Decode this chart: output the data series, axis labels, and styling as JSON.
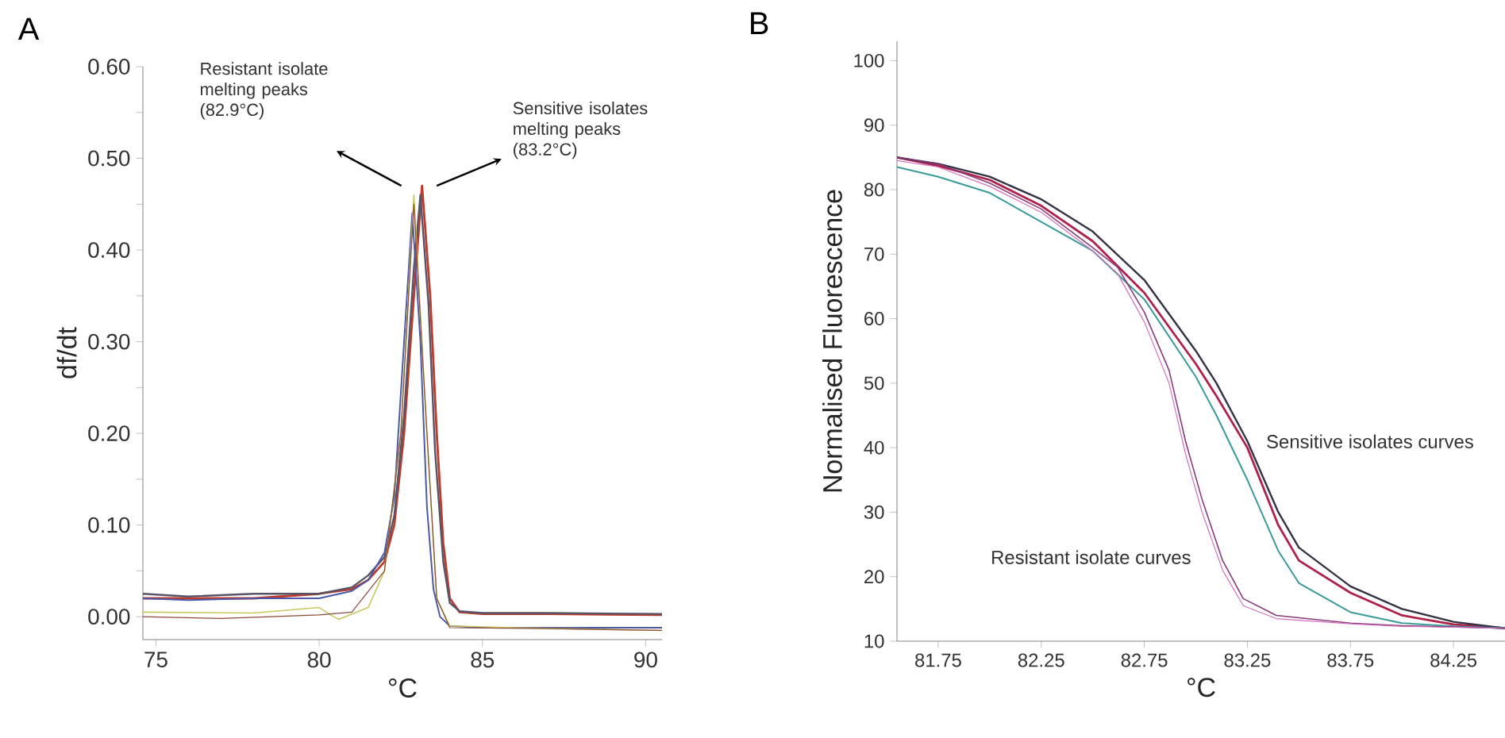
{
  "chart_data": [
    {
      "type": "line",
      "title": "A",
      "xlabel": "°C",
      "ylabel": "df/dt",
      "xlim": [
        74.6,
        90.5
      ],
      "ylim": [
        -0.025,
        0.6
      ],
      "xticks": [
        75,
        80,
        85,
        90
      ],
      "yticks": [
        {
          "value": 0,
          "label": "0.00"
        },
        {
          "value": 0.05,
          "label": null
        },
        {
          "value": 0.1,
          "label": "0.10"
        },
        {
          "value": 0.15,
          "label": null
        },
        {
          "value": 0.2,
          "label": "0.20"
        },
        {
          "value": 0.25,
          "label": null
        },
        {
          "value": 0.3,
          "label": "0.30"
        },
        {
          "value": 0.35,
          "label": null
        },
        {
          "value": 0.4,
          "label": "0.40"
        },
        {
          "value": 0.45,
          "label": null
        },
        {
          "value": 0.5,
          "label": "0.50"
        },
        {
          "value": 0.55,
          "label": null
        },
        {
          "value": 0.6,
          "label": "0.60"
        }
      ],
      "annotations": [
        "Resistant isolate melting peaks (82.9°C)",
        "Sensitive isolates melting peaks (83.2°C)"
      ],
      "series": [
        {
          "color": "#c0392b",
          "x": [
            74.6,
            76,
            78,
            80,
            81,
            81.5,
            82,
            82.3,
            82.6,
            82.9,
            83.15,
            83.4,
            83.6,
            83.8,
            84,
            84.3,
            85,
            87,
            90.5
          ],
          "values": [
            0.02,
            0.02,
            0.02,
            0.025,
            0.03,
            0.04,
            0.06,
            0.1,
            0.2,
            0.35,
            0.47,
            0.35,
            0.2,
            0.08,
            0.02,
            0.005,
            0.003,
            0.003,
            0.002
          ]
        },
        {
          "color": "#555566",
          "x": [
            74.6,
            76,
            78,
            80,
            81,
            81.5,
            82,
            82.3,
            82.6,
            82.9,
            83.1,
            83.35,
            83.55,
            83.8,
            84,
            84.3,
            85,
            87,
            90.5
          ],
          "values": [
            0.025,
            0.022,
            0.025,
            0.025,
            0.032,
            0.045,
            0.065,
            0.11,
            0.22,
            0.38,
            0.46,
            0.34,
            0.18,
            0.06,
            0.015,
            0.006,
            0.004,
            0.004,
            0.003
          ]
        },
        {
          "color": "#4a5aa8",
          "x": [
            74.6,
            76,
            78,
            80,
            81,
            81.5,
            82,
            82.3,
            82.6,
            82.85,
            83.1,
            83.3,
            83.5,
            83.7,
            84,
            85,
            90.5
          ],
          "values": [
            0.02,
            0.018,
            0.02,
            0.02,
            0.028,
            0.04,
            0.07,
            0.13,
            0.3,
            0.44,
            0.3,
            0.12,
            0.03,
            0.0,
            -0.01,
            -0.012,
            -0.012
          ]
        },
        {
          "color": "#c8c860",
          "x": [
            74.6,
            78,
            80,
            80.3,
            80.6,
            81.5,
            82,
            82.5,
            82.9,
            83.3,
            83.6,
            84,
            86,
            90.5
          ],
          "values": [
            0.005,
            0.004,
            0.01,
            0.003,
            -0.003,
            0.01,
            0.05,
            0.2,
            0.46,
            0.2,
            0.02,
            -0.01,
            -0.012,
            -0.015
          ]
        },
        {
          "color": "#8b4a3a",
          "x": [
            74.6,
            77,
            80,
            81,
            82,
            82.5,
            82.9,
            83.3,
            83.6,
            84,
            87,
            90.5
          ],
          "values": [
            0.0,
            -0.002,
            0.002,
            0.005,
            0.05,
            0.2,
            0.45,
            0.2,
            0.02,
            -0.012,
            -0.013,
            -0.015
          ]
        }
      ]
    },
    {
      "type": "line",
      "title": "B",
      "xlabel": "°C",
      "ylabel": "Normalised Fluorescence",
      "xlim": [
        81.55,
        84.5
      ],
      "ylim": [
        10,
        103
      ],
      "xticks": [
        81.75,
        82.25,
        82.75,
        83.25,
        83.75,
        84.25
      ],
      "yticks": [
        10,
        20,
        30,
        40,
        50,
        60,
        70,
        80,
        90,
        100
      ],
      "annotations": [
        "Sensitive isolates curves",
        "Resistant isolate curves"
      ],
      "series": [
        {
          "color": "#b0204a",
          "x": [
            81.55,
            81.75,
            82,
            82.25,
            82.5,
            82.75,
            83,
            83.1,
            83.25,
            83.4,
            83.5,
            83.75,
            84,
            84.25,
            84.5
          ],
          "values": [
            85,
            83.7,
            81.5,
            77.5,
            72,
            64,
            53,
            48,
            40,
            28,
            22.5,
            17.5,
            14,
            12.6,
            12
          ]
        },
        {
          "color": "#333344",
          "x": [
            81.55,
            81.75,
            82,
            82.25,
            82.5,
            82.75,
            83,
            83.1,
            83.25,
            83.4,
            83.5,
            83.75,
            84,
            84.25,
            84.5
          ],
          "values": [
            85,
            84,
            82,
            78.5,
            73.5,
            66,
            55,
            50,
            41,
            30,
            24.5,
            18.5,
            15,
            13,
            12
          ]
        },
        {
          "color": "#3a9a9a",
          "x": [
            81.55,
            81.75,
            82,
            82.25,
            82.5,
            82.75,
            83,
            83.1,
            83.25,
            83.4,
            83.5,
            83.75,
            84,
            84.25,
            84.5
          ],
          "values": [
            83.5,
            82,
            79.5,
            75,
            70.5,
            63,
            51,
            45,
            35,
            24,
            19,
            14.5,
            12.8,
            12.3,
            12
          ]
        },
        {
          "color": "#8a3a7a",
          "x": [
            81.55,
            81.75,
            82,
            82.25,
            82.5,
            82.62,
            82.75,
            82.87,
            82.95,
            83.03,
            83.13,
            83.23,
            83.39,
            83.75,
            84,
            84.5
          ],
          "values": [
            85,
            84,
            81,
            77,
            71,
            68,
            61,
            52,
            41,
            32,
            22.5,
            16.6,
            14,
            12.8,
            12.4,
            12
          ]
        },
        {
          "color": "#d070c0",
          "x": [
            81.55,
            81.75,
            82,
            82.25,
            82.5,
            82.62,
            82.75,
            82.87,
            82.95,
            83.03,
            83.13,
            83.23,
            83.39,
            83.75,
            84,
            84.5
          ],
          "values": [
            84.5,
            83.5,
            80.5,
            76.5,
            70.5,
            67,
            59.5,
            50,
            39,
            30,
            21,
            15.5,
            13.5,
            12.7,
            12.3,
            12
          ]
        }
      ]
    }
  ]
}
